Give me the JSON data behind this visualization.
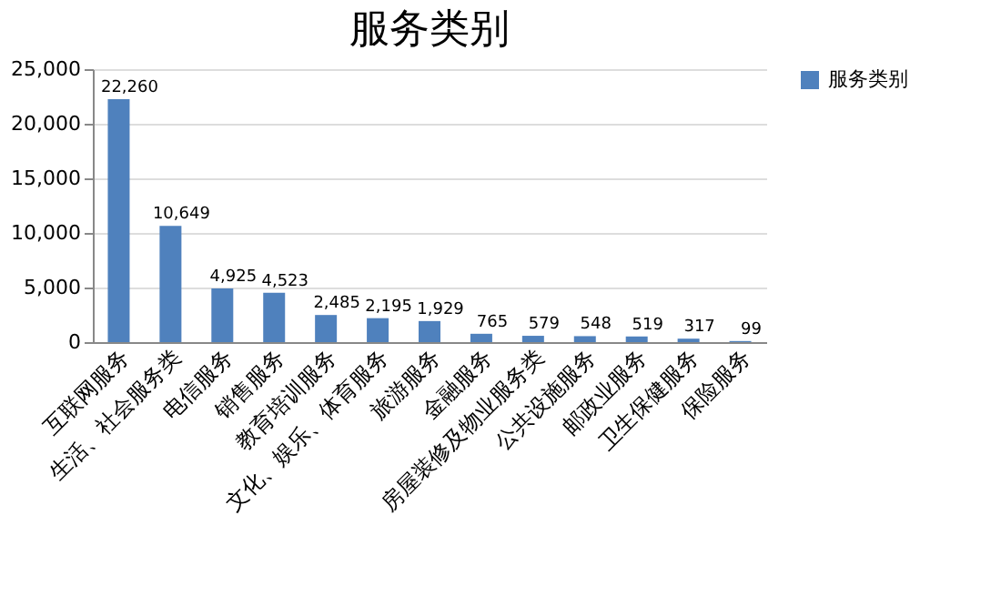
{
  "chart_data": {
    "type": "bar",
    "title": "服务类别",
    "categories": [
      "互联网服务",
      "生活、社会服务类",
      "电信服务",
      "销售服务",
      "教育培训服务",
      "文化、娱乐、体育服务",
      "旅游服务",
      "金融服务",
      "房屋装修及物业服务类",
      "公共设施服务",
      "邮政业服务",
      "卫生保健服务",
      "保险服务"
    ],
    "series": [
      {
        "name": "服务类别",
        "color": "#4f81bd",
        "values": [
          22260,
          10649,
          4925,
          4523,
          2485,
          2195,
          1929,
          765,
          579,
          548,
          519,
          317,
          99
        ],
        "value_labels": [
          "22,260",
          "10,649",
          "4,925",
          "4,523",
          "2,485",
          "2,195",
          "1,929",
          "765",
          "579",
          "548",
          "519",
          "317",
          "99"
        ]
      }
    ],
    "ylim": [
      0,
      25000
    ],
    "yticks": [
      0,
      {
        "value": 5000,
        "label": "5,000"
      },
      {
        "value": 10000,
        "label": "10,000"
      },
      {
        "value": 15000,
        "label": "15,000"
      },
      {
        "value": 20000,
        "label": "20,000"
      },
      {
        "value": 25000,
        "label": "25,000"
      }
    ],
    "grid": "y",
    "legend": "right"
  }
}
